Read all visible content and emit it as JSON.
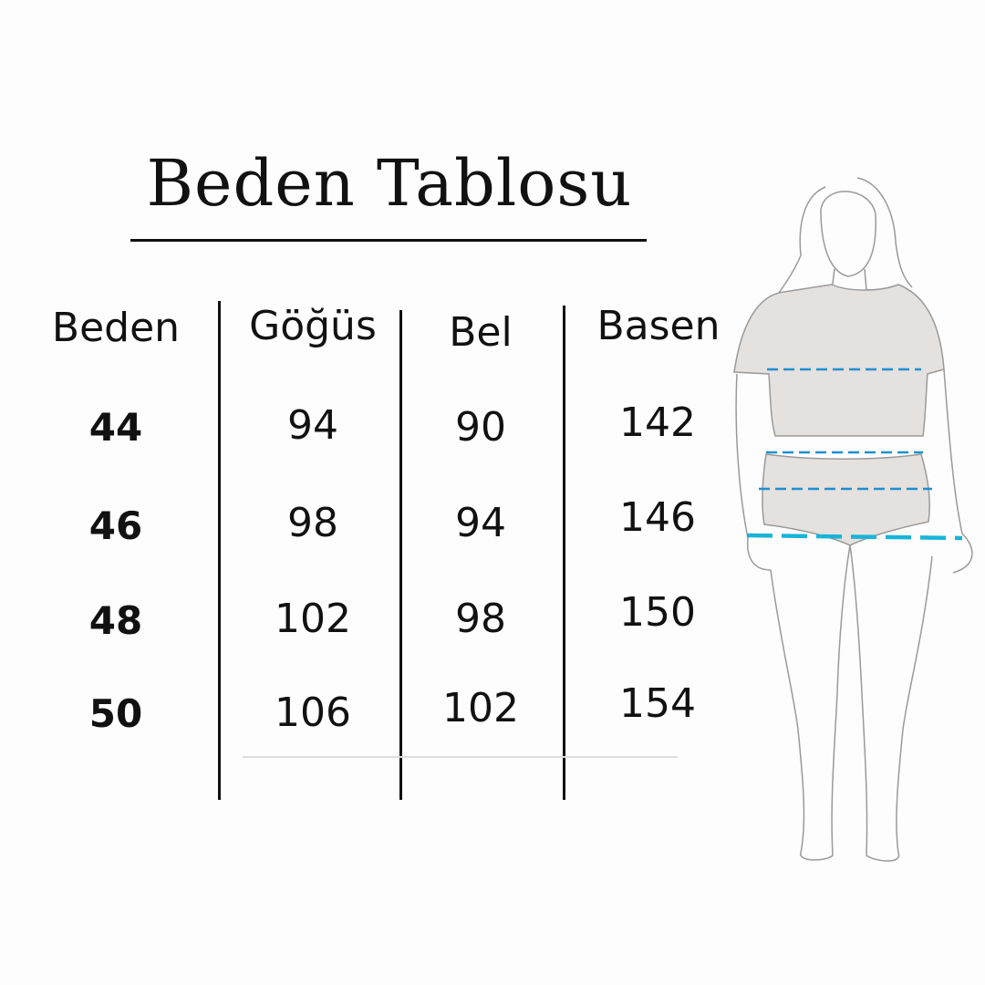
{
  "title": "Beden Tablosu",
  "table": {
    "headers": [
      "Beden",
      "Göğüs",
      "Bel",
      "Basen"
    ],
    "rows": [
      [
        "44",
        "94",
        "90",
        "142"
      ],
      [
        "46",
        "98",
        "94",
        "146"
      ],
      [
        "48",
        "102",
        "98",
        "150"
      ],
      [
        "50",
        "106",
        "102",
        "154"
      ]
    ]
  },
  "figure": {
    "icon": "body-measurement-illustration",
    "measure_line_color": "#1e8fd0",
    "hip_line_color": "#18b4d8",
    "garment_color": "#e4e1df"
  }
}
